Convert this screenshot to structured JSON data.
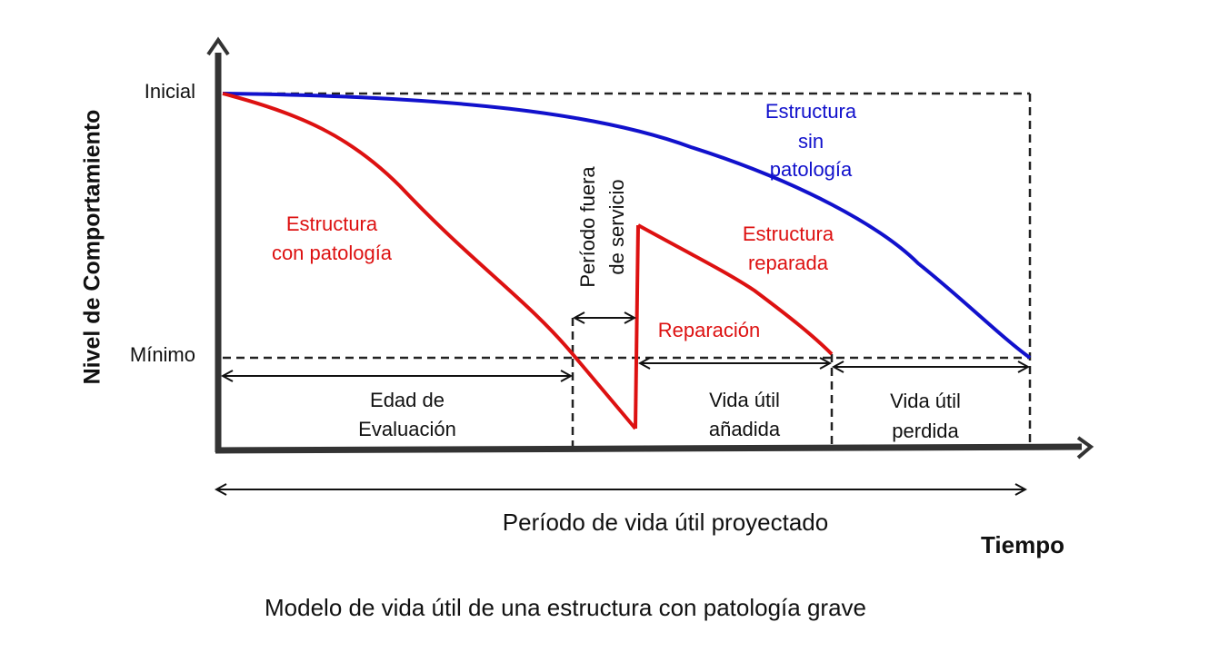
{
  "title": "Modelo de vida útil de una estructura con patología grave",
  "axes": {
    "y_label": "Nivel de Comportamiento",
    "x_label": "Tiempo",
    "y_tick_top": "Inicial",
    "y_tick_bottom": "Mínimo"
  },
  "curves": {
    "healthy": {
      "line1": "Estructura",
      "line2": "sin",
      "line3": "patología",
      "color": "#1111cc"
    },
    "pathology": {
      "line1": "Estructura",
      "line2": "con patología",
      "color": "#dd1111"
    },
    "repaired": {
      "line1": "Estructura",
      "line2": "reparada",
      "color": "#dd1111"
    },
    "repair": {
      "label": "Reparación",
      "color": "#dd1111"
    }
  },
  "periods": {
    "out_of_service": {
      "line1": "Período fuera",
      "line2": "de servicio"
    },
    "evaluation_age": {
      "line1": "Edad de",
      "line2": "Evaluación"
    },
    "added_life": {
      "line1": "Vida útil",
      "line2": "añadida"
    },
    "lost_life": {
      "line1": "Vida útil",
      "line2": "perdida"
    },
    "projected": "Período de vida útil proyectado"
  }
}
